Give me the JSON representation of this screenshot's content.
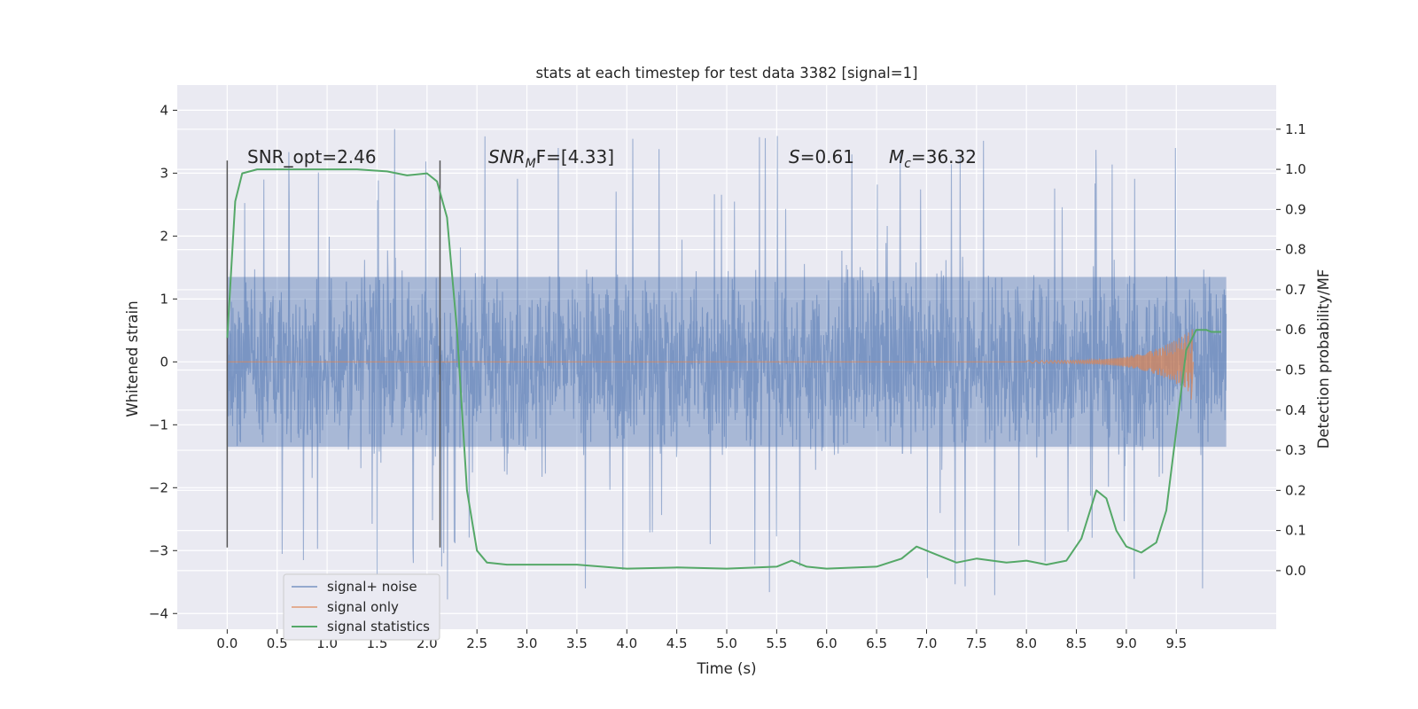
{
  "chart_data": {
    "type": "line",
    "title": "stats at each timestep for test data 3382 [signal=1]",
    "xlabel": "Time (s)",
    "ylabel": "Whitened strain",
    "y2label": "Detection probability/MF",
    "xlim": [
      -0.5,
      10.5
    ],
    "ylim": [
      -4.25,
      4.4
    ],
    "y2lim": [
      -0.146,
      1.21
    ],
    "xticks": [
      "0.0",
      "0.5",
      "1.0",
      "1.5",
      "2.0",
      "2.5",
      "3.0",
      "3.5",
      "4.0",
      "4.5",
      "5.0",
      "5.5",
      "6.0",
      "6.5",
      "7.0",
      "7.5",
      "8.0",
      "8.5",
      "9.0",
      "9.5"
    ],
    "yticks": [
      "4",
      "3",
      "2",
      "1",
      "0",
      "−1",
      "−2",
      "−3",
      "−4"
    ],
    "y2ticks": [
      "1.1",
      "1.0",
      "0.9",
      "0.8",
      "0.7",
      "0.6",
      "0.5",
      "0.4",
      "0.3",
      "0.2",
      "0.1",
      "0.0"
    ],
    "grid": true,
    "legend_position": "lower-left",
    "annotations": {
      "snr_opt": "SNR_opt=2.46",
      "snr_mf_sym": "SNR",
      "snr_mf_sub": "M",
      "snr_mf_rest": "F=[4.33]",
      "s_sym": "S",
      "s_rest": "=0.61",
      "mc_sym": "M",
      "mc_sub": "c",
      "mc_rest": "=36.32"
    },
    "markers": [
      {
        "x": 0.0,
        "y_range": [
          -2.95,
          3.2
        ]
      },
      {
        "x": 2.13,
        "y_range": [
          -2.95,
          3.2
        ]
      }
    ],
    "series": [
      {
        "name": "signal+ noise",
        "color": "#4c72b0",
        "x_range": [
          0.0,
          10.0
        ],
        "envelope": [
          2.3,
          2.3,
          2.2,
          2.3,
          2.2,
          2.4,
          2.2,
          2.3,
          2.3,
          2.3,
          2.2,
          2.3,
          2.2,
          2.3,
          2.2,
          2.3,
          2.2,
          2.3,
          2.2,
          2.3,
          2.2,
          2.3,
          2.3,
          2.4,
          2.3,
          2.3,
          2.3,
          2.3,
          2.4,
          2.4,
          2.3,
          2.4,
          2.3,
          2.4,
          2.4,
          2.4,
          2.3,
          2.4,
          2.4,
          2.4
        ]
      },
      {
        "name": "signal only",
        "color": "#dd8452",
        "points": [
          [
            0.0,
            0
          ],
          [
            8.0,
            0.0
          ],
          [
            8.5,
            0.05
          ],
          [
            9.0,
            0.1
          ],
          [
            9.3,
            0.15
          ],
          [
            9.5,
            0.3
          ],
          [
            9.6,
            0.4
          ],
          [
            9.65,
            -0.6
          ],
          [
            9.67,
            0
          ]
        ]
      },
      {
        "name": "signal statistics",
        "color": "#55a868",
        "axis": "right",
        "points": [
          [
            0.0,
            0.58
          ],
          [
            0.08,
            0.92
          ],
          [
            0.15,
            0.99
          ],
          [
            0.3,
            1.0
          ],
          [
            1.0,
            1.0
          ],
          [
            1.3,
            1.0
          ],
          [
            1.6,
            0.995
          ],
          [
            1.8,
            0.985
          ],
          [
            2.0,
            0.99
          ],
          [
            2.1,
            0.97
          ],
          [
            2.2,
            0.88
          ],
          [
            2.3,
            0.6
          ],
          [
            2.4,
            0.2
          ],
          [
            2.5,
            0.05
          ],
          [
            2.6,
            0.02
          ],
          [
            2.8,
            0.015
          ],
          [
            3.5,
            0.015
          ],
          [
            4.0,
            0.005
          ],
          [
            4.5,
            0.008
          ],
          [
            5.0,
            0.005
          ],
          [
            5.5,
            0.01
          ],
          [
            5.65,
            0.025
          ],
          [
            5.8,
            0.01
          ],
          [
            6.0,
            0.005
          ],
          [
            6.5,
            0.01
          ],
          [
            6.75,
            0.03
          ],
          [
            6.9,
            0.06
          ],
          [
            7.1,
            0.04
          ],
          [
            7.3,
            0.02
          ],
          [
            7.5,
            0.03
          ],
          [
            7.8,
            0.02
          ],
          [
            8.0,
            0.025
          ],
          [
            8.2,
            0.015
          ],
          [
            8.4,
            0.025
          ],
          [
            8.55,
            0.08
          ],
          [
            8.7,
            0.2
          ],
          [
            8.8,
            0.18
          ],
          [
            8.9,
            0.1
          ],
          [
            9.0,
            0.06
          ],
          [
            9.15,
            0.045
          ],
          [
            9.3,
            0.07
          ],
          [
            9.4,
            0.15
          ],
          [
            9.5,
            0.35
          ],
          [
            9.6,
            0.55
          ],
          [
            9.7,
            0.6
          ],
          [
            9.8,
            0.6
          ],
          [
            9.85,
            0.595
          ],
          [
            9.95,
            0.595
          ]
        ]
      }
    ]
  }
}
